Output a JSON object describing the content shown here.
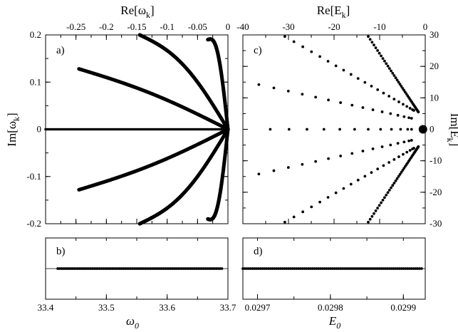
{
  "chart_data": [
    {
      "panel": "a)",
      "type": "scatter",
      "xlabel_top": "Re[ω",
      "xlabel_top_sub": "k",
      "xlabel_top_suffix": "]",
      "ylabel_left": "Im[ω",
      "ylabel_left_sub": "k",
      "ylabel_left_suffix": "]",
      "xlim": [
        -0.3,
        0
      ],
      "ylim": [
        -0.2,
        0.2
      ],
      "x_ticks": [
        "-0.25",
        "-0.2",
        "-0.15",
        "-0.1",
        "-0.05",
        "0"
      ],
      "x_tick_values": [
        -0.25,
        -0.2,
        -0.15,
        -0.1,
        -0.05,
        0
      ],
      "y_ticks": [
        "0.2",
        "0.1",
        "0",
        "-0.1",
        "-0.2"
      ],
      "y_tick_values": [
        0.2,
        0.1,
        0,
        -0.1,
        -0.2
      ],
      "branches": [
        {
          "start": [
            -0.3,
            0
          ],
          "end": [
            0,
            0
          ],
          "bend": 0
        },
        {
          "start": [
            -0.245,
            0.128
          ],
          "end": [
            0,
            0
          ],
          "bend": 0.02
        },
        {
          "start": [
            -0.245,
            -0.128
          ],
          "end": [
            0,
            0
          ],
          "bend": -0.02
        },
        {
          "start": [
            -0.145,
            0.2
          ],
          "end": [
            0,
            0
          ],
          "bend": 0.07
        },
        {
          "start": [
            -0.145,
            -0.2
          ],
          "end": [
            0,
            0
          ],
          "bend": -0.07
        },
        {
          "start": [
            -0.033,
            0.19
          ],
          "end": [
            0,
            0
          ],
          "bend": 0.13
        },
        {
          "start": [
            -0.033,
            -0.19
          ],
          "end": [
            0,
            0
          ],
          "bend": -0.13
        }
      ]
    },
    {
      "panel": "b)",
      "type": "scatter",
      "xlabel": "ω",
      "xlabel_sub": "0",
      "xlim": [
        33.4,
        33.7
      ],
      "x_ticks": [
        "33.4",
        "33.5",
        "33.6",
        "33.7"
      ],
      "x_tick_values": [
        33.4,
        33.5,
        33.6,
        33.7
      ],
      "x_range": [
        33.42,
        33.69
      ],
      "y_value": 0
    },
    {
      "panel": "c)",
      "type": "scatter",
      "xlabel_top": "Re[E",
      "xlabel_top_sub": "k",
      "xlabel_top_suffix": "]",
      "ylabel_right": "Im[E",
      "ylabel_right_sub": "k",
      "ylabel_right_suffix": "]",
      "xlim": [
        -40,
        0
      ],
      "ylim": [
        -30,
        30
      ],
      "x_ticks": [
        "-40",
        "-30",
        "-20",
        "-10",
        "0"
      ],
      "x_tick_values": [
        -40,
        -30,
        -20,
        -10,
        0
      ],
      "y_ticks": [
        "30",
        "20",
        "10",
        "0",
        "-10",
        "-20",
        "-30"
      ],
      "y_tick_values": [
        30,
        20,
        10,
        0,
        -10,
        -20,
        -30
      ],
      "rays": [
        {
          "start": [
            -34,
            0
          ],
          "end": [
            -3,
            0
          ],
          "points": 12
        },
        {
          "start": [
            -36.5,
            14.2
          ],
          "end": [
            -3,
            3.5
          ],
          "points": 16
        },
        {
          "start": [
            -36.5,
            -14.2
          ],
          "end": [
            -3,
            -3.5
          ],
          "points": 16
        },
        {
          "start": [
            -30.8,
            29.5
          ],
          "end": [
            -2.5,
            6
          ],
          "points": 22
        },
        {
          "start": [
            -30.8,
            -29.5
          ],
          "end": [
            -2.5,
            -6
          ],
          "points": 22
        },
        {
          "start": [
            -12.5,
            29.5
          ],
          "end": [
            -1.5,
            5.5
          ],
          "points": 40
        },
        {
          "start": [
            -12.5,
            -29.5
          ],
          "end": [
            -1.5,
            -5.5
          ],
          "points": 40
        }
      ],
      "cluster": [
        -0.5,
        0
      ]
    },
    {
      "panel": "d)",
      "type": "scatter",
      "xlabel": "E",
      "xlabel_sub": "0",
      "xlim": [
        0.02968,
        0.02993
      ],
      "x_ticks": [
        "0.0297",
        "0.0298",
        "0.0299"
      ],
      "x_tick_values": [
        0.0297,
        0.0298,
        0.0299
      ],
      "x_range": [
        0.02968,
        0.029925
      ],
      "y_value": 0
    }
  ]
}
